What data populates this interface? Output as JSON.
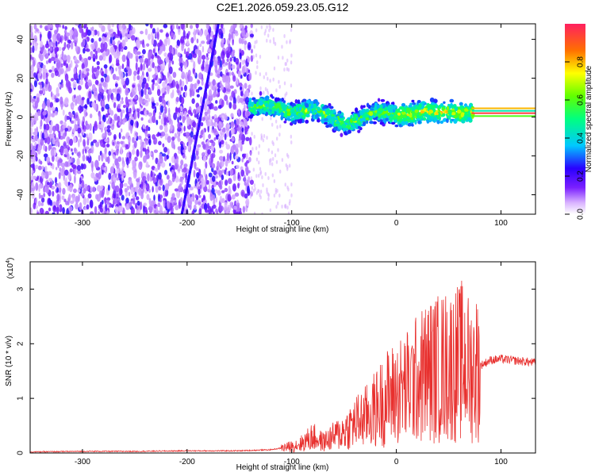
{
  "chart_data": [
    {
      "type": "heatmap",
      "title": "C2E1.2026.059.23.05.G12",
      "xlabel": "Height of straight line (km)",
      "ylabel": "Frequency (Hz)",
      "xlim": [
        -350,
        133
      ],
      "ylim": [
        -50,
        48
      ],
      "xticks": [
        -300,
        -200,
        -100,
        0,
        100
      ],
      "yticks": [
        -40,
        -20,
        0,
        20,
        40
      ],
      "colorbar": {
        "label": "Normalized spectral amplitude",
        "range": [
          0,
          1
        ],
        "ticks": [
          0.0,
          0.2,
          0.4,
          0.6,
          0.8
        ],
        "colormap": "rainbow"
      },
      "trace": {
        "description": "frequency centroid",
        "x": [
          -140,
          -125,
          -110,
          -100,
          -90,
          -80,
          -70,
          -60,
          -50,
          -45,
          -40,
          -30,
          -20,
          -10,
          0,
          10,
          20,
          30,
          40,
          50,
          60,
          70,
          80,
          100,
          133
        ],
        "y": [
          5,
          6,
          4,
          2,
          3,
          4,
          2,
          -1,
          -3,
          -4,
          -2,
          0,
          3,
          2,
          1,
          1,
          2,
          3,
          2,
          3,
          2,
          2,
          2,
          2,
          2
        ]
      }
    },
    {
      "type": "line",
      "title": "",
      "xlabel": "Height of straight line (km)",
      "ylabel": "SNR (10 * v/v)",
      "y_multiplier": "(x10",
      "y_multiplier_exp": "4",
      "xlim": [
        -350,
        133
      ],
      "ylim": [
        0,
        3.5
      ],
      "xticks": [
        -300,
        -200,
        -100,
        0,
        100
      ],
      "yticks": [
        0,
        1,
        2,
        3
      ],
      "color": "#e8302e",
      "series": [
        {
          "x": [
            -350,
            -300,
            -250,
            -200,
            -150,
            -120,
            -100,
            -90,
            -80,
            -70,
            -60,
            -50,
            -40,
            -30,
            -20,
            -10,
            0,
            10,
            20,
            30,
            40,
            50,
            60,
            65,
            70,
            80,
            90,
            100,
            110,
            120,
            133
          ],
          "y": [
            0.02,
            0.03,
            0.03,
            0.04,
            0.04,
            0.06,
            0.12,
            0.18,
            0.3,
            0.2,
            0.3,
            0.4,
            0.55,
            0.65,
            0.8,
            1.0,
            1.1,
            1.2,
            1.35,
            1.5,
            1.55,
            1.6,
            1.65,
            1.7,
            1.5,
            1.6,
            1.7,
            1.72,
            1.7,
            1.68,
            1.65
          ]
        }
      ]
    }
  ]
}
